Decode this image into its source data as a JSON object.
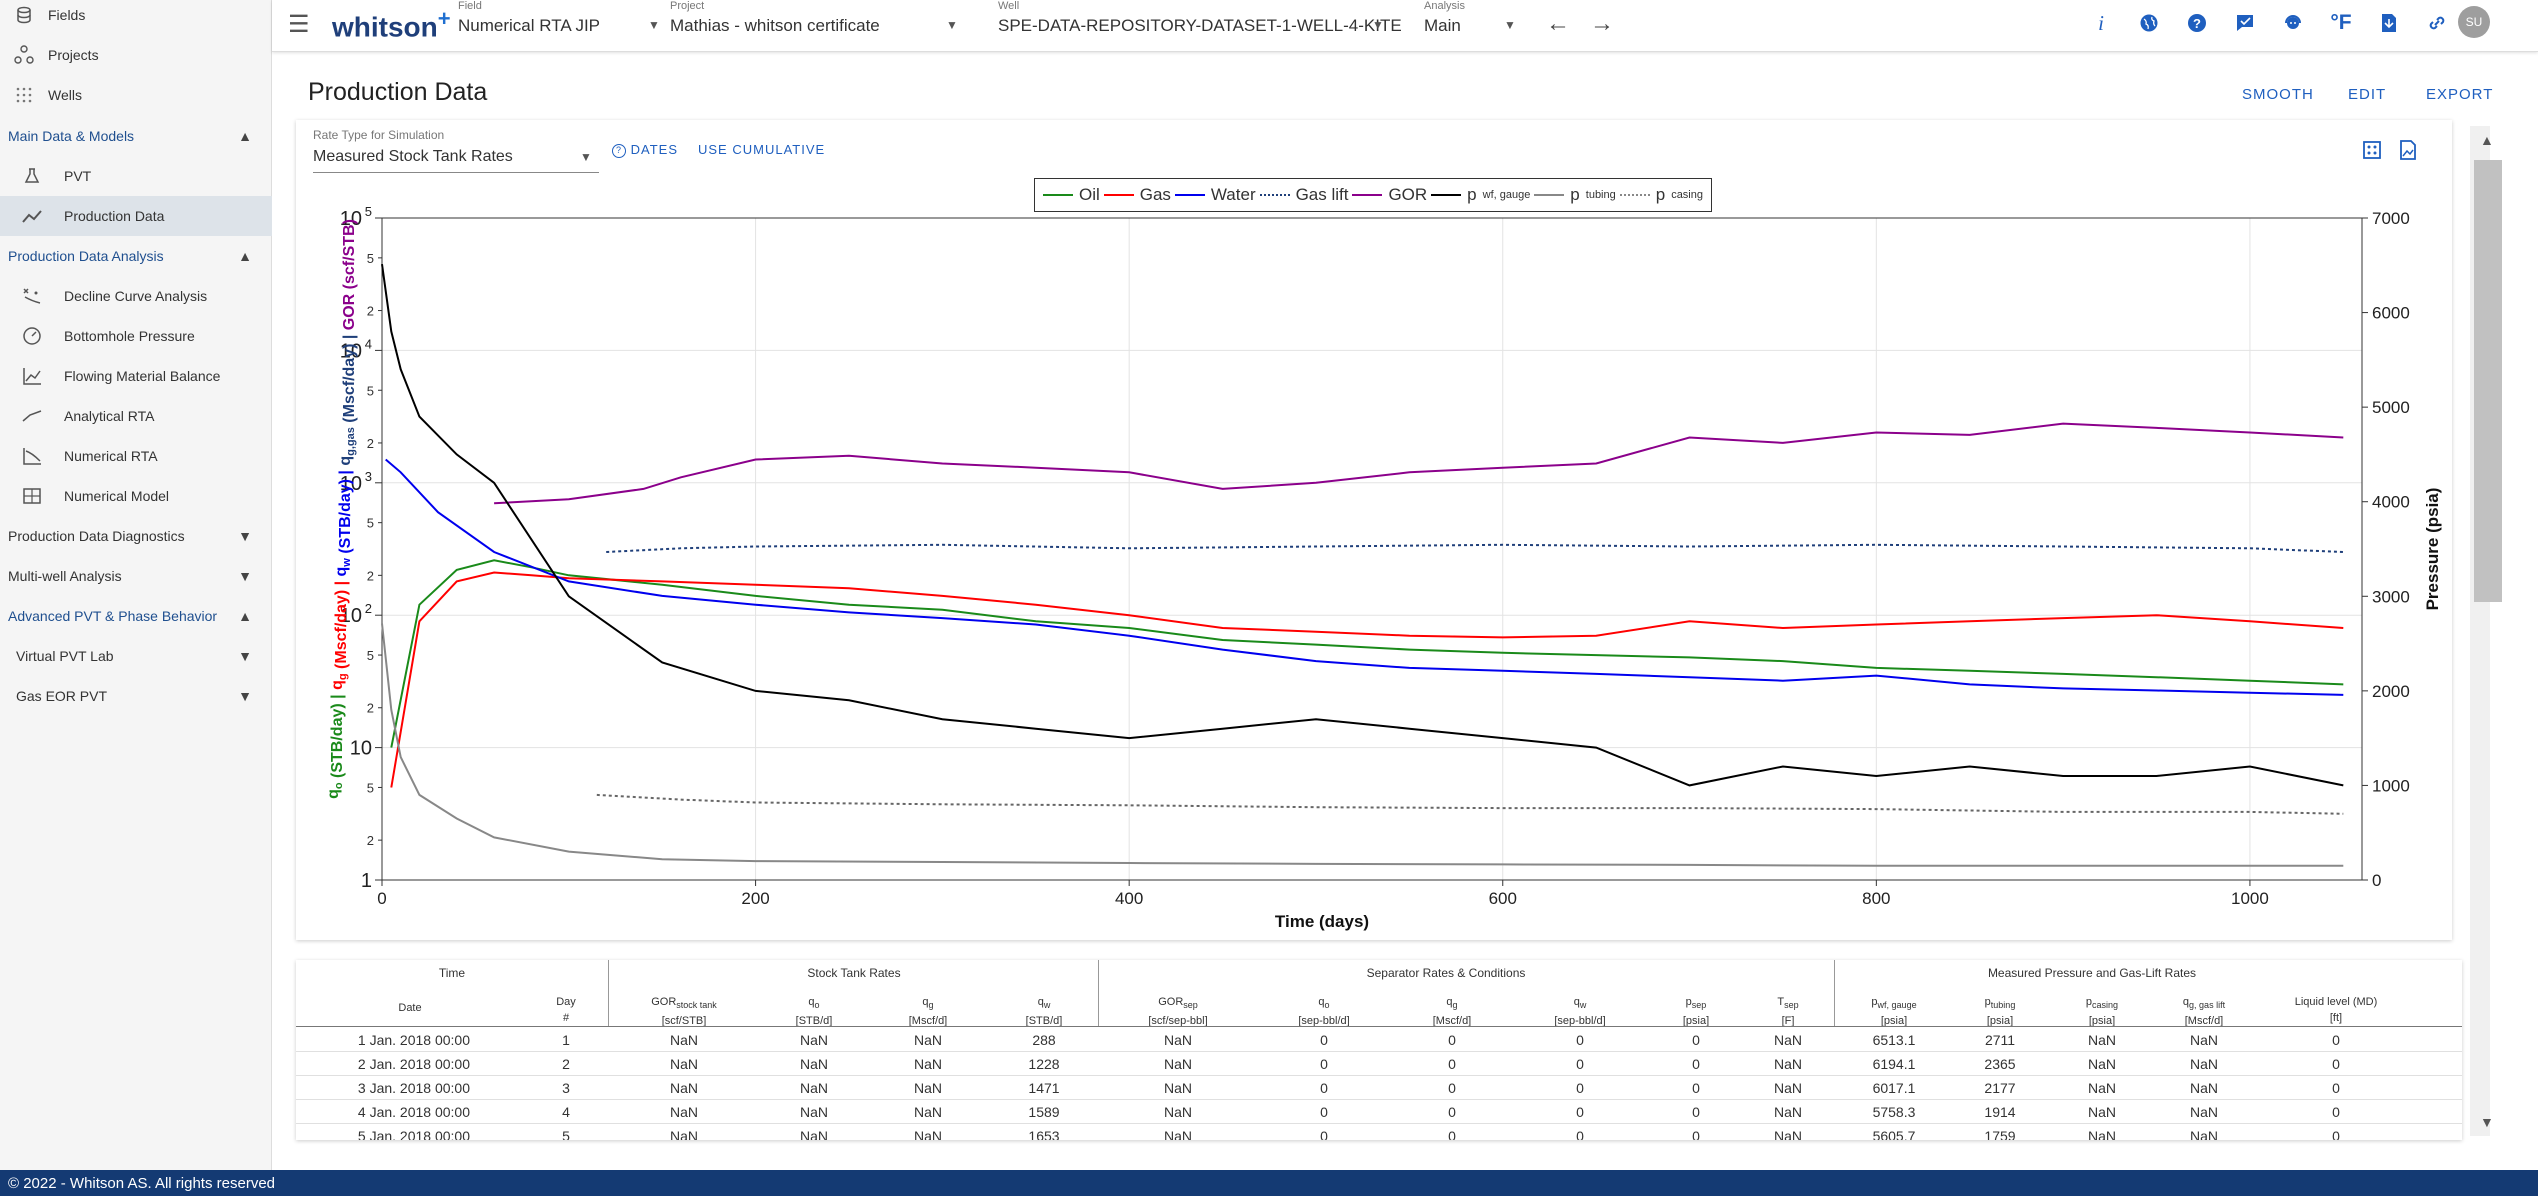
{
  "sidebar": {
    "top_items": [
      {
        "label": "Fields",
        "icon": "database-icon"
      },
      {
        "label": "Projects",
        "icon": "projects-icon"
      },
      {
        "label": "Wells",
        "icon": "wells-grid-icon"
      }
    ],
    "sections": [
      {
        "label": "Main Data & Models",
        "expanded": true
      },
      {
        "label": "Production Data Analysis",
        "expanded": true
      },
      {
        "label": "Production Data Diagnostics",
        "expanded": false
      },
      {
        "label": "Multi-well Analysis",
        "expanded": false
      },
      {
        "label": "Advanced PVT & Phase Behavior",
        "expanded": true
      }
    ],
    "items": [
      {
        "label": "PVT"
      },
      {
        "label": "Production Data"
      },
      {
        "label": "Decline Curve Analysis"
      },
      {
        "label": "Bottomhole Pressure"
      },
      {
        "label": "Flowing Material Balance"
      },
      {
        "label": "Analytical RTA"
      },
      {
        "label": "Numerical RTA"
      },
      {
        "label": "Numerical Model"
      },
      {
        "label": "Virtual PVT Lab"
      },
      {
        "label": "Gas EOR PVT"
      }
    ]
  },
  "topbar": {
    "brand": "whitson",
    "brand_sup": "+",
    "selectors": [
      {
        "label": "Field",
        "value": "Numerical RTA JIP"
      },
      {
        "label": "Project",
        "value": "Mathias - whitson certificate"
      },
      {
        "label": "Well",
        "value": "SPE-DATA-REPOSITORY-DATASET-1-WELL-4-KITE"
      },
      {
        "label": "Analysis",
        "value": "Main"
      }
    ],
    "avatar": "SU",
    "temp_unit": "°F"
  },
  "page": {
    "title": "Production Data",
    "smooth": "SMOOTH",
    "edit": "EDIT",
    "export": "EXPORT",
    "rate_type_label": "Rate Type for Simulation",
    "rate_type_value": "Measured Stock Tank Rates",
    "dates_btn": "DATES",
    "cumulative_btn": "USE CUMULATIVE"
  },
  "legend": [
    {
      "name": "Oil",
      "color": "#1a8a1a",
      "dash": false
    },
    {
      "name": "Gas",
      "color": "#ff0000",
      "dash": false
    },
    {
      "name": "Water",
      "color": "#0000ee",
      "dash": false
    },
    {
      "name": "Gas lift",
      "color": "#1f3f7a",
      "dash": true
    },
    {
      "name": "GOR",
      "color": "#8b008b",
      "dash": false
    },
    {
      "name": "p",
      "sub": "wf, gauge",
      "color": "#000000",
      "dash": false
    },
    {
      "name": "p",
      "sub": "tubing",
      "color": "#888888",
      "dash": false
    },
    {
      "name": "p",
      "sub": "casing",
      "color": "#888888",
      "dash": true
    }
  ],
  "chart_data": {
    "type": "line",
    "xlabel": "Time (days)",
    "y2label": "Pressure (psia)",
    "x_ticks": [
      0,
      200,
      400,
      600,
      800,
      1000
    ],
    "xlim": [
      0,
      1060
    ],
    "ylim_log": [
      1,
      100000
    ],
    "y2_ticks": [
      0,
      1000,
      2000,
      3000,
      4000,
      5000,
      6000,
      7000
    ],
    "y2lim": [
      0,
      7000
    ],
    "y_major_labels": [
      "1",
      "10",
      "10",
      "10",
      "10",
      "10"
    ],
    "y_major_exps": [
      "",
      "",
      "2",
      "3",
      "4",
      "5"
    ],
    "y_minor_labels": [
      "2",
      "5"
    ],
    "series": [
      {
        "name": "GOR",
        "axis": "left",
        "color": "#8b008b",
        "x": [
          60,
          100,
          140,
          160,
          200,
          250,
          300,
          350,
          400,
          450,
          500,
          550,
          600,
          650,
          700,
          750,
          800,
          850,
          900,
          950,
          1000,
          1050
        ],
        "y": [
          700,
          750,
          900,
          1100,
          1500,
          1600,
          1400,
          1300,
          1200,
          900,
          1000,
          1200,
          1300,
          1400,
          2200,
          2000,
          2400,
          2300,
          2800,
          2600,
          2400,
          2200
        ]
      },
      {
        "name": "Oil",
        "axis": "left",
        "color": "#1a8a1a",
        "x": [
          5,
          20,
          40,
          60,
          80,
          100,
          150,
          200,
          250,
          300,
          350,
          400,
          450,
          500,
          550,
          600,
          650,
          700,
          750,
          800,
          850,
          900,
          950,
          1000,
          1050
        ],
        "y": [
          10,
          120,
          220,
          260,
          230,
          200,
          170,
          140,
          120,
          110,
          90,
          80,
          65,
          60,
          55,
          52,
          50,
          48,
          45,
          40,
          38,
          36,
          34,
          32,
          30
        ]
      },
      {
        "name": "Gas",
        "axis": "left",
        "color": "#ff0000",
        "x": [
          5,
          20,
          40,
          60,
          80,
          100,
          150,
          200,
          250,
          300,
          350,
          400,
          450,
          500,
          550,
          600,
          650,
          700,
          750,
          800,
          850,
          900,
          950,
          1000,
          1050
        ],
        "y": [
          5,
          90,
          180,
          210,
          200,
          190,
          180,
          170,
          160,
          140,
          120,
          100,
          80,
          75,
          70,
          68,
          70,
          90,
          80,
          85,
          90,
          95,
          100,
          90,
          80
        ]
      },
      {
        "name": "Water",
        "axis": "left",
        "color": "#0000ee",
        "x": [
          2,
          10,
          30,
          60,
          100,
          150,
          200,
          250,
          300,
          350,
          400,
          450,
          500,
          550,
          600,
          650,
          700,
          750,
          800,
          850,
          900,
          950,
          1000,
          1050
        ],
        "y": [
          1500,
          1200,
          600,
          300,
          180,
          140,
          120,
          105,
          95,
          85,
          70,
          55,
          45,
          40,
          38,
          36,
          34,
          32,
          35,
          30,
          28,
          27,
          26,
          25
        ]
      },
      {
        "name": "Gas lift",
        "axis": "left",
        "color": "#1f3f7a",
        "dash": true,
        "x": [
          120,
          160,
          200,
          300,
          400,
          500,
          600,
          700,
          800,
          900,
          1000,
          1050
        ],
        "y": [
          300,
          320,
          330,
          340,
          320,
          330,
          340,
          330,
          340,
          330,
          320,
          300
        ]
      },
      {
        "name": "pwf, gauge",
        "axis": "right",
        "color": "#000000",
        "x": [
          0,
          5,
          10,
          20,
          40,
          60,
          100,
          150,
          200,
          250,
          300,
          350,
          400,
          450,
          500,
          550,
          600,
          650,
          700,
          750,
          800,
          850,
          900,
          950,
          1000,
          1050
        ],
        "y": [
          6513,
          5800,
          5400,
          4900,
          4500,
          4200,
          3000,
          2300,
          2000,
          1900,
          1700,
          1600,
          1500,
          1600,
          1700,
          1600,
          1500,
          1400,
          1000,
          1200,
          1100,
          1200,
          1100,
          1100,
          1200,
          1000
        ]
      },
      {
        "name": "ptubing",
        "axis": "right",
        "color": "#888888",
        "x": [
          0,
          5,
          10,
          20,
          40,
          60,
          100,
          150,
          200,
          300,
          400,
          500,
          600,
          700,
          800,
          900,
          1000,
          1050
        ],
        "y": [
          2711,
          1800,
          1300,
          900,
          650,
          450,
          300,
          220,
          200,
          190,
          180,
          170,
          165,
          160,
          150,
          150,
          150,
          150
        ]
      },
      {
        "name": "pcasing",
        "axis": "right",
        "color": "#666666",
        "dash": true,
        "x": [
          115,
          160,
          200,
          300,
          400,
          500,
          600,
          700,
          800,
          900,
          1000,
          1050
        ],
        "y": [
          900,
          850,
          820,
          800,
          790,
          770,
          760,
          760,
          750,
          720,
          720,
          700
        ]
      }
    ]
  },
  "table": {
    "groups": [
      "Time",
      "Stock Tank Rates",
      "Separator Rates & Conditions",
      "Measured Pressure and Gas-Lift Rates"
    ],
    "columns": [
      {
        "name": "Date",
        "sub": "",
        "unit": ""
      },
      {
        "name": "Day",
        "sub": "",
        "unit": "#"
      },
      {
        "name": "GOR",
        "sub": "stock tank",
        "unit": "[scf/STB]"
      },
      {
        "name": "q",
        "sub": "o",
        "unit": "[STB/d]"
      },
      {
        "name": "q",
        "sub": "g",
        "unit": "[Mscf/d]"
      },
      {
        "name": "q",
        "sub": "w",
        "unit": "[STB/d]"
      },
      {
        "name": "GOR",
        "sub": "sep",
        "unit": "[scf/sep-bbl]"
      },
      {
        "name": "q",
        "sub": "o",
        "unit": "[sep-bbl/d]"
      },
      {
        "name": "q",
        "sub": "g",
        "unit": "[Mscf/d]"
      },
      {
        "name": "q",
        "sub": "w",
        "unit": "[sep-bbl/d]"
      },
      {
        "name": "p",
        "sub": "sep",
        "unit": "[psia]"
      },
      {
        "name": "T",
        "sub": "sep",
        "unit": "[F]"
      },
      {
        "name": "p",
        "sub": "wf, gauge",
        "unit": "[psia]"
      },
      {
        "name": "p",
        "sub": "tubing",
        "unit": "[psia]"
      },
      {
        "name": "p",
        "sub": "casing",
        "unit": "[psia]"
      },
      {
        "name": "q",
        "sub": "g, gas lift",
        "unit": "[Mscf/d]"
      },
      {
        "name": "Liquid level (MD)",
        "sub": "",
        "unit": "[ft]"
      }
    ],
    "rows": [
      [
        "1 Jan. 2018 00:00",
        "1",
        "NaN",
        "NaN",
        "NaN",
        "288",
        "NaN",
        "0",
        "0",
        "0",
        "0",
        "NaN",
        "6513.1",
        "2711",
        "NaN",
        "NaN",
        "0"
      ],
      [
        "2 Jan. 2018 00:00",
        "2",
        "NaN",
        "NaN",
        "NaN",
        "1228",
        "NaN",
        "0",
        "0",
        "0",
        "0",
        "NaN",
        "6194.1",
        "2365",
        "NaN",
        "NaN",
        "0"
      ],
      [
        "3 Jan. 2018 00:00",
        "3",
        "NaN",
        "NaN",
        "NaN",
        "1471",
        "NaN",
        "0",
        "0",
        "0",
        "0",
        "NaN",
        "6017.1",
        "2177",
        "NaN",
        "NaN",
        "0"
      ],
      [
        "4 Jan. 2018 00:00",
        "4",
        "NaN",
        "NaN",
        "NaN",
        "1589",
        "NaN",
        "0",
        "0",
        "0",
        "0",
        "NaN",
        "5758.3",
        "1914",
        "NaN",
        "NaN",
        "0"
      ],
      [
        "5 Jan. 2018 00:00",
        "5",
        "NaN",
        "NaN",
        "NaN",
        "1653",
        "NaN",
        "0",
        "0",
        "0",
        "0",
        "NaN",
        "5605.7",
        "1759",
        "NaN",
        "NaN",
        "0"
      ]
    ]
  },
  "footer": "© 2022 - Whitson AS. All rights reserved"
}
